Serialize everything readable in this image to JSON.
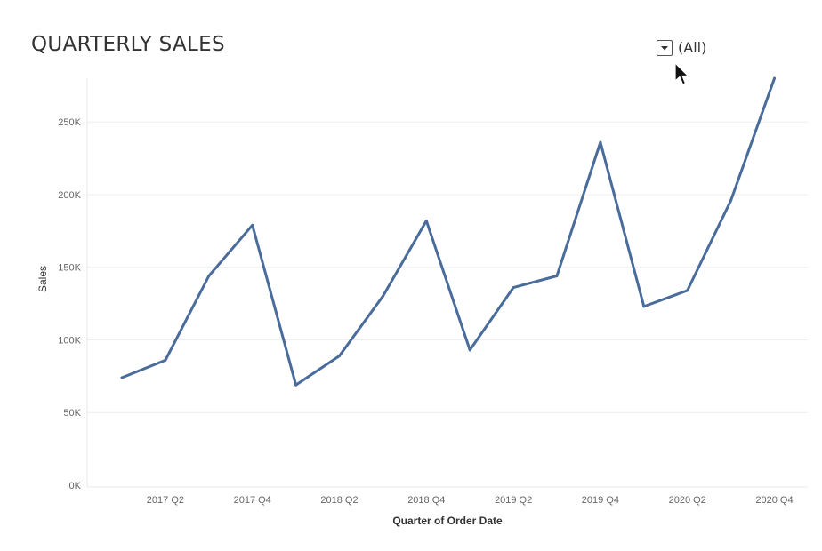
{
  "title": "QUARTERLY SALES",
  "filter": {
    "value": "(All)",
    "icon": "dropdown-arrow-icon"
  },
  "cursor_icon": "mouse-pointer-icon",
  "colors": {
    "line": "#4a6c9b",
    "grid": "#eeeeee",
    "axis_text": "#666666"
  },
  "chart_data": {
    "type": "line",
    "xlabel": "Quarter of Order Date",
    "ylabel": "Sales",
    "ylim": [
      0,
      285000
    ],
    "y_ticks": [
      0,
      50000,
      100000,
      150000,
      200000,
      250000
    ],
    "y_tick_labels": [
      "0K",
      "50K",
      "100K",
      "150K",
      "200K",
      "250K"
    ],
    "x": [
      "2017 Q1",
      "2017 Q2",
      "2017 Q3",
      "2017 Q4",
      "2018 Q1",
      "2018 Q2",
      "2018 Q3",
      "2018 Q4",
      "2019 Q1",
      "2019 Q2",
      "2019 Q3",
      "2019 Q4",
      "2020 Q1",
      "2020 Q2",
      "2020 Q3",
      "2020 Q4"
    ],
    "x_tick_labels": [
      "2017 Q2",
      "2017 Q4",
      "2018 Q2",
      "2018 Q4",
      "2019 Q2",
      "2019 Q4",
      "2020 Q2",
      "2020 Q4"
    ],
    "series": [
      {
        "values": [
          74000,
          86000,
          144000,
          179000,
          69000,
          89000,
          130000,
          182000,
          93000,
          136000,
          144000,
          236000,
          123000,
          134000,
          196000,
          280000
        ]
      }
    ],
    "grid": true
  }
}
